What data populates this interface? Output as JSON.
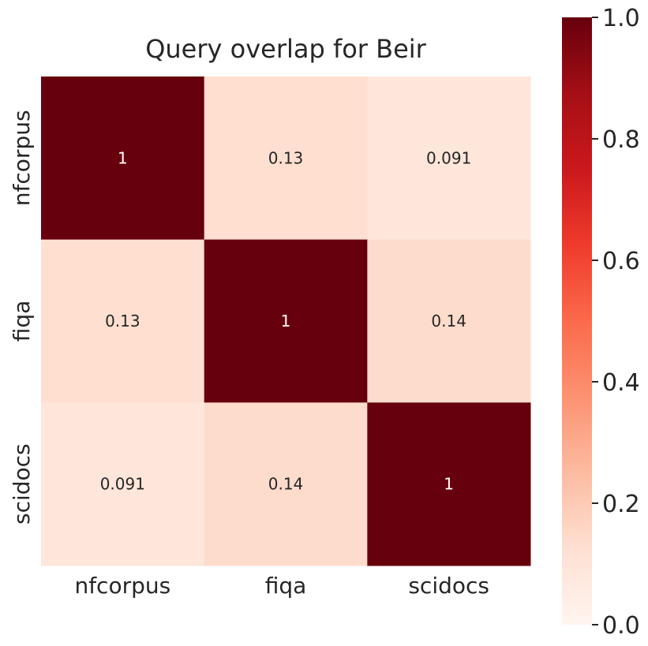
{
  "chart_data": {
    "type": "heatmap",
    "title": "Query overlap for Beir",
    "x_labels": [
      "nfcorpus",
      "fiqa",
      "scidocs"
    ],
    "y_labels": [
      "nfcorpus",
      "fiqa",
      "scidocs"
    ],
    "values": [
      [
        1,
        0.13,
        0.091
      ],
      [
        0.13,
        1,
        0.14
      ],
      [
        0.091,
        0.14,
        1
      ]
    ],
    "annotations": [
      [
        "1",
        "0.13",
        "0.091"
      ],
      [
        "0.13",
        "1",
        "0.14"
      ],
      [
        "0.091",
        "0.14",
        "1"
      ]
    ],
    "colormap": "Reds",
    "vmin": 0,
    "vmax": 1,
    "colorbar_ticks": [
      "0.0",
      "0.2",
      "0.4",
      "0.6",
      "0.8",
      "1.0"
    ],
    "colorbar_tick_values": [
      0,
      0.2,
      0.4,
      0.6,
      0.8,
      1.0
    ],
    "colormap_stops": [
      {
        "v": 0.0,
        "color": "#fff5f0"
      },
      {
        "v": 0.125,
        "color": "#fee0d2"
      },
      {
        "v": 0.25,
        "color": "#fcbba1"
      },
      {
        "v": 0.375,
        "color": "#fc9272"
      },
      {
        "v": 0.5,
        "color": "#fb6a4a"
      },
      {
        "v": 0.625,
        "color": "#ef3b2c"
      },
      {
        "v": 0.75,
        "color": "#cb181d"
      },
      {
        "v": 0.875,
        "color": "#a50f15"
      },
      {
        "v": 1.0,
        "color": "#67000d"
      }
    ]
  }
}
